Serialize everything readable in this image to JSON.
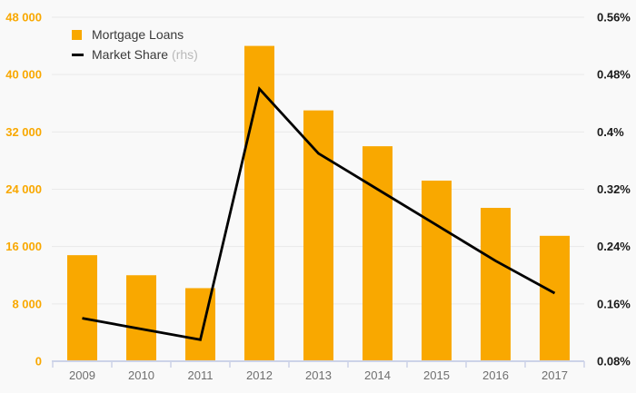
{
  "colors": {
    "background": "#f9f9f9",
    "bar": "#F9A800",
    "line": "#000000",
    "gridline": "#e9e9e9",
    "axis_line": "#ccd3e8",
    "left_axis_labels": "#F9A800",
    "right_axis_labels": "#1a1a1a",
    "category_labels": "#6f6f6f",
    "legend_text": "#3a3a3a",
    "legend_muted": "#b9b9b9"
  },
  "legend": {
    "items": [
      {
        "label": "Mortgage Loans",
        "suffix": "",
        "swatch": "square",
        "color": "#F9A800"
      },
      {
        "label": "Market Share",
        "suffix": "(rhs)",
        "swatch": "line",
        "color": "#000000"
      }
    ]
  },
  "chart_data": {
    "type": "bar",
    "title": "",
    "subtitle": "",
    "categories": [
      "2009",
      "2010",
      "2011",
      "2012",
      "2013",
      "2014",
      "2015",
      "2016",
      "2017"
    ],
    "series": [
      {
        "name": "Mortgage Loans",
        "type": "bar",
        "axis": "left",
        "color": "#F9A800",
        "values": [
          14800,
          12000,
          10200,
          44000,
          35000,
          30000,
          25200,
          21400,
          17500
        ]
      },
      {
        "name": "Market Share (rhs)",
        "type": "line",
        "axis": "right",
        "color": "#000000",
        "values": [
          0.14,
          0.125,
          0.11,
          0.46,
          0.37,
          0.32,
          0.27,
          0.22,
          0.175
        ]
      }
    ],
    "left_axis": {
      "min": 0,
      "max": 48000,
      "step": 8000,
      "tick_labels": [
        "0",
        "8 000",
        "16 000",
        "24 000",
        "32 000",
        "40 000",
        "48 000"
      ]
    },
    "right_axis": {
      "min": 0.08,
      "max": 0.56,
      "step": 0.08,
      "tick_labels": [
        "0.08%",
        "0.16%",
        "0.24%",
        "0.32%",
        "0.4%",
        "0.48%",
        "0.56%"
      ]
    },
    "legend_position": "top-left",
    "grid": true
  }
}
